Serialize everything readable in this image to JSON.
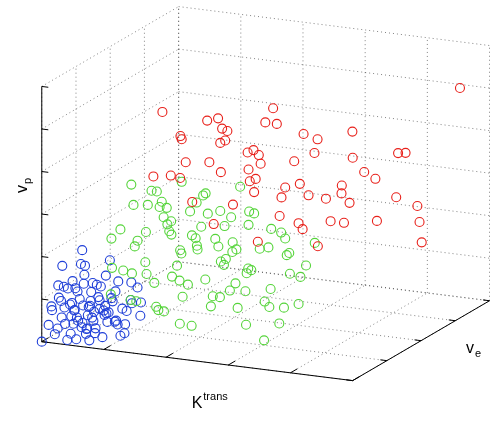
{
  "chart_data": {
    "type": "scatter",
    "x_label": "Ktrans",
    "y_label": "ve",
    "z_label": "vp",
    "xlim": [
      0,
      5
    ],
    "xticks": [
      0,
      1,
      2,
      3,
      4,
      5
    ],
    "ylim": [
      0,
      4
    ],
    "yticks": [
      0,
      1,
      2,
      3,
      4
    ],
    "zlim": [
      0,
      6
    ],
    "zticks": [
      0,
      1,
      2,
      3,
      4,
      5,
      6
    ],
    "grid": true,
    "tick_labels": false,
    "series": [
      {
        "color": "#e8201a",
        "marker": "circle",
        "values": [
          [
            1.5,
            0.8,
            5.3
          ],
          [
            1.7,
            1.0,
            4.6
          ],
          [
            1.9,
            0.6,
            4.9
          ],
          [
            2.0,
            1.2,
            5.0
          ],
          [
            2.2,
            0.9,
            4.2
          ],
          [
            2.1,
            1.4,
            4.4
          ],
          [
            1.8,
            0.5,
            4.0
          ],
          [
            2.4,
            1.0,
            4.7
          ],
          [
            2.6,
            0.7,
            5.1
          ],
          [
            2.5,
            1.5,
            3.8
          ],
          [
            2.8,
            1.1,
            4.5
          ],
          [
            3.0,
            0.8,
            4.0
          ],
          [
            2.9,
            1.6,
            4.9
          ],
          [
            3.2,
            1.3,
            3.6
          ],
          [
            3.1,
            0.9,
            5.3
          ],
          [
            3.4,
            1.2,
            4.3
          ],
          [
            3.3,
            1.8,
            3.2
          ],
          [
            3.6,
            1.0,
            3.9
          ],
          [
            3.5,
            1.7,
            4.6
          ],
          [
            3.8,
            1.4,
            3.4
          ],
          [
            3.7,
            0.9,
            2.9
          ],
          [
            4.0,
            1.5,
            3.7
          ],
          [
            3.9,
            2.0,
            4.1
          ],
          [
            4.2,
            1.2,
            3.0
          ],
          [
            4.1,
            2.3,
            3.5
          ],
          [
            4.4,
            1.8,
            2.8
          ],
          [
            4.3,
            2.6,
            4.0
          ],
          [
            4.6,
            2.0,
            3.3
          ],
          [
            4.5,
            2.8,
            2.7
          ],
          [
            4.8,
            3.5,
            5.2
          ],
          [
            4.7,
            2.5,
            2.5
          ],
          [
            2.3,
            1.9,
            3.3
          ],
          [
            2.0,
            1.6,
            3.6
          ],
          [
            1.6,
            1.3,
            3.9
          ],
          [
            2.7,
            2.1,
            2.9
          ],
          [
            3.0,
            2.2,
            4.4
          ],
          [
            3.5,
            2.4,
            3.0
          ],
          [
            2.2,
            0.4,
            3.5
          ],
          [
            2.6,
            0.3,
            3.1
          ],
          [
            3.2,
            0.5,
            2.7
          ],
          [
            3.8,
            0.6,
            3.2
          ],
          [
            4.0,
            0.8,
            2.6
          ],
          [
            2.4,
            2.4,
            4.8
          ],
          [
            2.9,
            2.7,
            3.7
          ],
          [
            3.4,
            2.9,
            4.2
          ],
          [
            1.8,
            2.0,
            4.4
          ],
          [
            1.4,
            1.5,
            3.4
          ],
          [
            1.3,
            0.9,
            3.7
          ],
          [
            2.8,
            0.5,
            3.5
          ],
          [
            3.6,
            1.9,
            2.6
          ],
          [
            4.9,
            2.2,
            2.2
          ],
          [
            4.2,
            3.0,
            3.8
          ],
          [
            3.3,
            0.4,
            4.6
          ],
          [
            2.5,
            1.8,
            4.0
          ],
          [
            3.0,
            1.5,
            2.8
          ],
          [
            1.9,
            1.7,
            4.8
          ],
          [
            2.1,
            2.2,
            3.8
          ],
          [
            3.7,
            2.7,
            3.4
          ],
          [
            4.4,
            1.0,
            3.6
          ],
          [
            2.7,
            1.3,
            3.4
          ]
        ]
      },
      {
        "color": "#55d43a",
        "marker": "circle",
        "values": [
          [
            1.0,
            0.8,
            3.5
          ],
          [
            1.2,
            0.5,
            3.2
          ],
          [
            1.4,
            0.9,
            3.0
          ],
          [
            1.1,
            0.3,
            2.7
          ],
          [
            1.3,
            1.2,
            2.6
          ],
          [
            1.6,
            0.6,
            3.3
          ],
          [
            1.5,
            1.0,
            2.4
          ],
          [
            1.8,
            0.4,
            2.9
          ],
          [
            1.7,
            1.3,
            2.2
          ],
          [
            2.0,
            0.7,
            3.1
          ],
          [
            1.9,
            1.1,
            2.0
          ],
          [
            2.2,
            0.5,
            2.6
          ],
          [
            2.1,
            1.4,
            2.8
          ],
          [
            2.4,
            0.8,
            2.3
          ],
          [
            2.3,
            1.2,
            1.8
          ],
          [
            2.6,
            0.6,
            2.0
          ],
          [
            2.5,
            1.5,
            2.5
          ],
          [
            2.8,
            0.9,
            1.7
          ],
          [
            2.7,
            1.3,
            2.9
          ],
          [
            3.0,
            0.5,
            1.5
          ],
          [
            2.9,
            1.1,
            2.2
          ],
          [
            3.2,
            0.7,
            1.2
          ],
          [
            3.1,
            1.6,
            1.9
          ],
          [
            3.4,
            0.9,
            1.0
          ],
          [
            3.3,
            0.5,
            0.4
          ],
          [
            3.5,
            1.2,
            1.6
          ],
          [
            3.6,
            0.4,
            0.9
          ],
          [
            3.0,
            1.8,
            1.3
          ],
          [
            0.9,
            0.4,
            2.4
          ],
          [
            1.0,
            0.9,
            2.0
          ],
          [
            1.2,
            0.2,
            1.8
          ],
          [
            1.3,
            0.7,
            1.5
          ],
          [
            1.5,
            0.3,
            2.0
          ],
          [
            1.4,
            1.5,
            1.7
          ],
          [
            1.6,
            0.9,
            1.4
          ],
          [
            1.7,
            0.2,
            1.6
          ],
          [
            1.8,
            1.0,
            1.2
          ],
          [
            1.9,
            0.5,
            1.9
          ],
          [
            2.0,
            1.6,
            1.5
          ],
          [
            2.1,
            0.3,
            1.3
          ],
          [
            2.2,
            1.0,
            1.0
          ],
          [
            2.3,
            0.6,
            1.6
          ],
          [
            2.4,
            1.3,
            1.2
          ],
          [
            2.5,
            0.4,
            1.1
          ],
          [
            2.6,
            1.0,
            0.8
          ],
          [
            2.7,
            0.3,
            1.4
          ],
          [
            2.8,
            1.6,
            1.0
          ],
          [
            2.9,
            0.7,
            0.6
          ],
          [
            1.1,
            1.1,
            2.9
          ],
          [
            1.2,
            1.6,
            2.3
          ],
          [
            1.5,
            1.8,
            2.7
          ],
          [
            1.7,
            1.7,
            3.0
          ],
          [
            2.0,
            1.9,
            2.4
          ],
          [
            2.2,
            1.8,
            3.2
          ],
          [
            1.9,
            0.2,
            3.4
          ],
          [
            1.6,
            0.3,
            3.7
          ],
          [
            2.4,
            0.3,
            3.0
          ],
          [
            2.6,
            1.9,
            1.8
          ],
          [
            3.2,
            1.3,
            2.4
          ],
          [
            3.4,
            1.8,
            2.1
          ],
          [
            3.7,
            1.0,
            2.0
          ],
          [
            3.8,
            0.6,
            1.3
          ],
          [
            0.8,
            0.6,
            1.6
          ],
          [
            0.9,
            1.0,
            1.3
          ],
          [
            1.0,
            0.2,
            1.2
          ],
          [
            1.1,
            0.6,
            0.9
          ],
          [
            1.3,
            0.4,
            1.0
          ],
          [
            1.4,
            0.8,
            0.7
          ],
          [
            1.6,
            0.5,
            0.8
          ],
          [
            1.8,
            0.3,
            0.9
          ],
          [
            2.0,
            0.4,
            0.6
          ],
          [
            2.3,
            0.2,
            0.7
          ],
          [
            1.5,
            1.3,
            1.1
          ],
          [
            1.7,
            0.7,
            2.5
          ],
          [
            1.9,
            1.4,
            2.7
          ],
          [
            2.1,
            0.9,
            3.4
          ],
          [
            2.3,
            1.4,
            2.1
          ],
          [
            2.5,
            0.8,
            2.8
          ],
          [
            2.7,
            1.8,
            2.3
          ],
          [
            2.9,
            0.3,
            2.5
          ],
          [
            3.1,
            0.4,
            2.1
          ],
          [
            3.3,
            1.0,
            2.7
          ],
          [
            1.2,
            1.9,
            1.4
          ],
          [
            1.4,
            0.5,
            2.6
          ],
          [
            1.8,
            1.8,
            1.9
          ],
          [
            2.2,
            1.5,
            0.9
          ],
          [
            2.6,
            1.4,
            1.5
          ],
          [
            3.0,
            1.2,
            0.8
          ],
          [
            1.3,
            1.0,
            3.3
          ],
          [
            1.7,
            1.0,
            3.6
          ],
          [
            2.4,
            1.7,
            2.7
          ],
          [
            1.1,
            0.8,
            2.2
          ],
          [
            2.0,
            0.9,
            2.2
          ],
          [
            2.8,
            0.6,
            2.4
          ],
          [
            3.5,
            0.8,
            2.3
          ]
        ]
      },
      {
        "color": "#1f3fd8",
        "marker": "circle",
        "values": [
          [
            0.0,
            0.0,
            0.0
          ],
          [
            0.1,
            0.2,
            0.1
          ],
          [
            0.2,
            0.1,
            0.3
          ],
          [
            0.1,
            0.5,
            0.2
          ],
          [
            0.3,
            0.3,
            0.1
          ],
          [
            0.2,
            0.6,
            0.5
          ],
          [
            0.4,
            0.2,
            0.4
          ],
          [
            0.3,
            0.8,
            0.3
          ],
          [
            0.5,
            0.4,
            0.2
          ],
          [
            0.4,
            0.7,
            0.7
          ],
          [
            0.6,
            0.1,
            0.5
          ],
          [
            0.5,
            0.9,
            0.4
          ],
          [
            0.7,
            0.3,
            0.3
          ],
          [
            0.6,
            0.6,
            0.8
          ],
          [
            0.8,
            0.5,
            0.6
          ],
          [
            0.7,
            0.9,
            0.2
          ],
          [
            0.9,
            0.2,
            0.7
          ],
          [
            0.8,
            0.7,
            1.0
          ],
          [
            1.0,
            0.4,
            0.4
          ],
          [
            0.9,
            1.0,
            0.6
          ],
          [
            1.1,
            0.6,
            0.9
          ],
          [
            1.0,
            0.8,
            1.2
          ],
          [
            1.2,
            0.3,
            0.8
          ],
          [
            0.1,
            0.8,
            0.9
          ],
          [
            0.2,
            0.4,
            1.1
          ],
          [
            0.3,
            0.1,
            1.3
          ],
          [
            0.0,
            0.6,
            1.5
          ],
          [
            0.1,
            1.0,
            1.7
          ],
          [
            0.2,
            0.9,
            1.4
          ],
          [
            0.4,
            0.5,
            1.2
          ],
          [
            0.5,
            0.2,
            1.0
          ],
          [
            0.3,
            0.6,
            1.6
          ],
          [
            0.6,
            0.4,
            1.3
          ],
          [
            0.5,
            0.7,
            1.1
          ],
          [
            0.7,
            0.6,
            1.4
          ],
          [
            0.4,
            1.0,
            0.9
          ],
          [
            0.6,
            0.9,
            1.6
          ],
          [
            0.8,
            0.2,
            1.1
          ],
          [
            0.9,
            0.6,
            1.3
          ],
          [
            0.0,
            0.3,
            0.6
          ],
          [
            0.1,
            0.1,
            0.8
          ],
          [
            0.2,
            0.3,
            0.7
          ],
          [
            0.0,
            0.9,
            1.0
          ],
          [
            0.1,
            0.4,
            0.4
          ],
          [
            0.2,
            0.7,
            0.2
          ],
          [
            0.3,
            0.4,
            0.6
          ],
          [
            0.4,
            0.1,
            0.9
          ],
          [
            0.5,
            0.5,
            0.7
          ],
          [
            0.6,
            0.8,
            0.4
          ],
          [
            0.7,
            0.1,
            0.9
          ],
          [
            0.8,
            0.9,
            0.5
          ],
          [
            0.9,
            0.4,
            1.0
          ],
          [
            1.0,
            0.1,
            0.6
          ],
          [
            1.1,
            0.9,
            0.7
          ],
          [
            1.2,
            0.7,
            0.5
          ],
          [
            0.3,
            0.2,
            0.0
          ],
          [
            0.5,
            0.1,
            0.1
          ],
          [
            0.7,
            0.5,
            0.0
          ],
          [
            0.9,
            0.8,
            0.2
          ],
          [
            1.1,
            0.3,
            0.2
          ],
          [
            0.2,
            0.8,
            0.0
          ],
          [
            0.4,
            0.6,
            0.1
          ],
          [
            0.6,
            0.3,
            0.0
          ],
          [
            0.8,
            0.1,
            0.3
          ],
          [
            1.0,
            0.6,
            0.1
          ],
          [
            0.1,
            0.7,
            0.6
          ],
          [
            0.3,
            0.9,
            0.8
          ],
          [
            0.2,
            0.2,
            0.9
          ],
          [
            0.4,
            0.3,
            0.5
          ],
          [
            0.6,
            0.6,
            0.6
          ],
          [
            0.7,
            0.8,
            0.7
          ],
          [
            0.5,
            0.3,
            0.8
          ],
          [
            0.3,
            0.5,
            1.0
          ],
          [
            0.1,
            0.3,
            1.2
          ],
          [
            0.0,
            0.2,
            0.3
          ],
          [
            0.2,
            0.5,
            0.4
          ],
          [
            0.4,
            0.8,
            0.4
          ],
          [
            0.6,
            0.2,
            0.2
          ],
          [
            0.8,
            0.4,
            0.8
          ],
          [
            0.5,
            0.6,
            0.3
          ],
          [
            0.7,
            0.2,
            0.6
          ],
          [
            0.9,
            0.5,
            0.4
          ],
          [
            1.1,
            0.8,
            1.1
          ],
          [
            0.3,
            0.7,
            1.3
          ],
          [
            0.0,
            0.5,
            0.8
          ]
        ]
      }
    ]
  }
}
